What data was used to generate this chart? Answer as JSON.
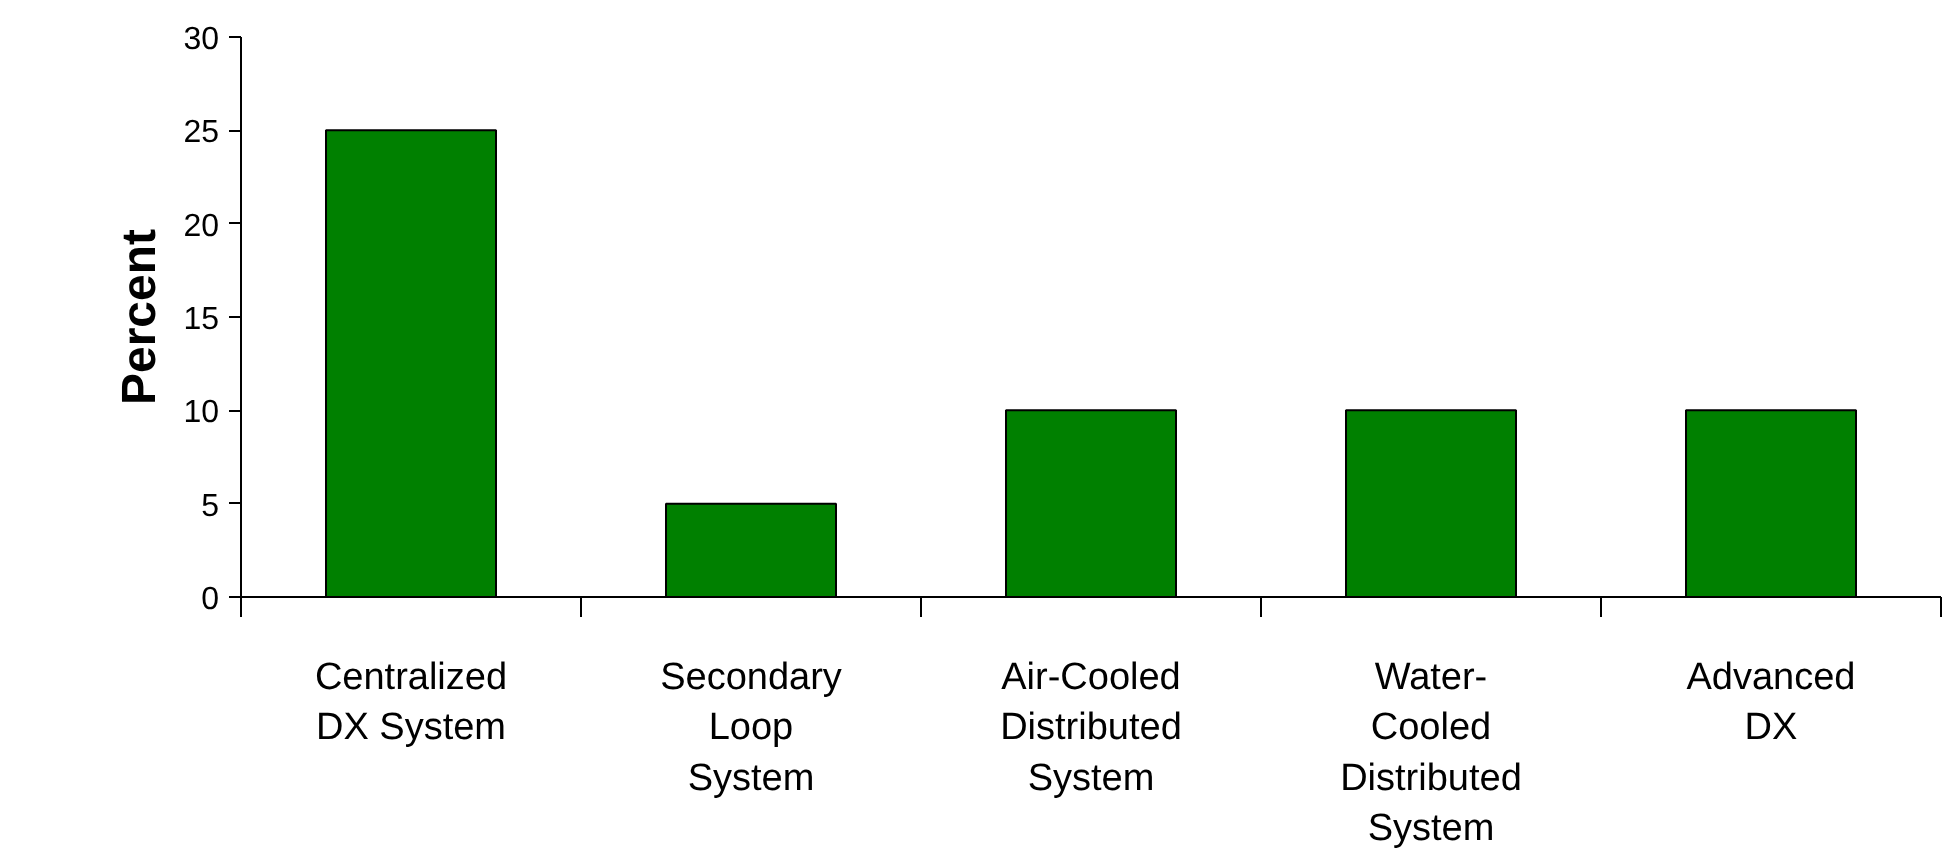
{
  "chart_data": {
    "type": "bar",
    "ylabel": "Percent",
    "categories": [
      "Centralized\nDX System",
      "Secondary\nLoop\nSystem",
      "Air-Cooled\nDistributed\nSystem",
      "Water-\nCooled\nDistributed\nSystem",
      "Advanced\nDX"
    ],
    "values": [
      25,
      5,
      10,
      10,
      10
    ],
    "color": "#008000",
    "ylim": [
      0,
      30
    ],
    "yticks": [
      0,
      5,
      10,
      15,
      20,
      25,
      30
    ],
    "grid": false
  }
}
